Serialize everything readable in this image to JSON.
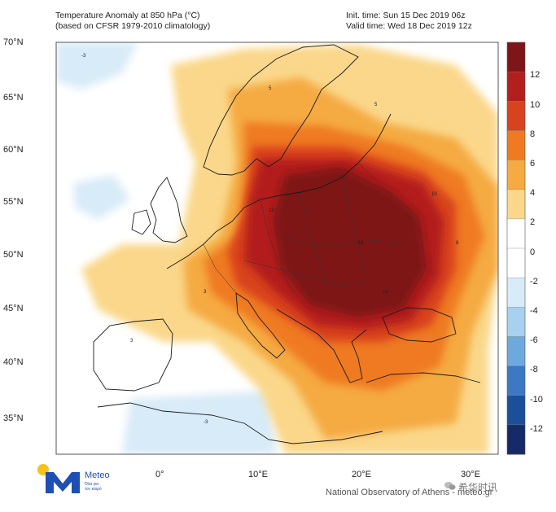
{
  "header": {
    "title_line1": "Temperature Anomaly at 850 hPa (°C)",
    "title_line2": "(based on CFSR 1979-2010 climatology)",
    "init_time": "Init. time: Sun 15 Dec 2019 06z",
    "valid_time": "Valid time: Wed 18 Dec 2019 12z"
  },
  "map": {
    "lat_labels": [
      "70°N",
      "65°N",
      "60°N",
      "55°N",
      "50°N",
      "45°N",
      "40°N",
      "35°N"
    ],
    "lon_labels": [
      "0°",
      "10°E",
      "20°E",
      "30°E"
    ],
    "anomaly_core": "+14 °C over Hungary / Romania / Ukraine",
    "contour_values": [
      "14",
      "12",
      "10",
      "8",
      "5",
      "3",
      "-3"
    ]
  },
  "colorbar": {
    "labels": [
      "12",
      "10",
      "8",
      "6",
      "4",
      "2",
      "0",
      "-2",
      "-4",
      "-6",
      "-8",
      "-10",
      "-12"
    ],
    "colors": [
      "#7e1518",
      "#b21f1d",
      "#d8421f",
      "#ef7a22",
      "#f5aa42",
      "#fad78a",
      "#ffffff",
      "#ffffff",
      "#d8ebf8",
      "#a8d0ef",
      "#6da9dd",
      "#3e78c2",
      "#1c4f9a",
      "#152a66"
    ]
  },
  "footer": {
    "brand": "Meteo",
    "slogan_line1": "Όλα για",
    "slogan_line2": "τον καιρό",
    "source": "National Observatory of Athens - meteo.gr",
    "watermark": "希华时讯"
  }
}
